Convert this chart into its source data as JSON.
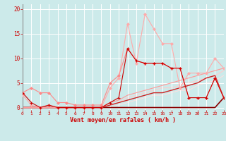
{
  "background_color": "#cceaea",
  "grid_color": "#ffffff",
  "xlabel": "Vent moyen/en rafales ( km/h )",
  "xlim": [
    0,
    23
  ],
  "ylim": [
    -0.5,
    21
  ],
  "yticks": [
    0,
    5,
    10,
    15,
    20
  ],
  "xticks": [
    0,
    1,
    2,
    3,
    4,
    5,
    6,
    7,
    8,
    9,
    10,
    11,
    12,
    13,
    14,
    15,
    16,
    17,
    18,
    19,
    20,
    21,
    22,
    23
  ],
  "lines": [
    {
      "x": [
        0,
        1,
        2,
        3,
        4,
        5,
        6,
        7,
        8,
        9,
        10,
        11,
        12,
        13,
        14,
        15,
        16,
        17,
        18,
        19,
        20,
        21,
        22,
        23
      ],
      "y": [
        3,
        1,
        0,
        0.5,
        0,
        0,
        0,
        0,
        0,
        0,
        1,
        2,
        12,
        9.5,
        9,
        9,
        9,
        8,
        8,
        2,
        2,
        2,
        6,
        2
      ],
      "color": "#cc0000",
      "lw": 0.8,
      "marker": "+",
      "ms": 3,
      "mew": 0.8,
      "zorder": 5
    },
    {
      "x": [
        0,
        1,
        2,
        3,
        4,
        5,
        6,
        7,
        8,
        9,
        10,
        11,
        12,
        13,
        14,
        15,
        16,
        17,
        18,
        19,
        20,
        21,
        22,
        23
      ],
      "y": [
        3,
        4,
        3,
        3,
        1,
        1,
        0.5,
        0.5,
        0.5,
        0.5,
        5,
        6.5,
        12,
        9.5,
        9,
        9,
        9,
        8,
        8,
        2,
        2,
        2,
        6,
        2
      ],
      "color": "#ff8888",
      "lw": 0.8,
      "marker": "D",
      "ms": 2,
      "mew": 0.5,
      "zorder": 4
    },
    {
      "x": [
        0,
        1,
        2,
        3,
        4,
        5,
        6,
        7,
        8,
        9,
        10,
        11,
        12,
        13,
        14,
        15,
        16,
        17,
        18,
        19,
        20,
        21,
        22,
        23
      ],
      "y": [
        2.5,
        0.5,
        0,
        0.5,
        0,
        0,
        0,
        0,
        0,
        0,
        4,
        6,
        17,
        9,
        19,
        16,
        13,
        13,
        4,
        7,
        7,
        7,
        10,
        8
      ],
      "color": "#ffaaaa",
      "lw": 0.8,
      "marker": "D",
      "ms": 2,
      "mew": 0.5,
      "zorder": 3
    },
    {
      "x": [
        0,
        1,
        2,
        3,
        4,
        5,
        6,
        7,
        8,
        9,
        10,
        11,
        12,
        13,
        14,
        15,
        16,
        17,
        18,
        19,
        20,
        21,
        22,
        23
      ],
      "y": [
        0,
        0,
        0,
        0,
        0,
        0,
        0,
        0,
        0,
        0,
        0,
        0,
        0,
        0,
        0,
        0,
        0,
        0,
        0,
        0,
        0,
        0,
        0,
        2
      ],
      "color": "#880000",
      "lw": 1.2,
      "marker": null,
      "ms": 0,
      "mew": 0,
      "zorder": 2
    },
    {
      "x": [
        0,
        1,
        2,
        3,
        4,
        5,
        6,
        7,
        8,
        9,
        10,
        11,
        12,
        13,
        14,
        15,
        16,
        17,
        18,
        19,
        20,
        21,
        22,
        23
      ],
      "y": [
        0,
        0,
        0,
        0,
        0,
        0,
        0,
        0,
        0,
        0,
        0.5,
        1,
        1.5,
        2,
        2.5,
        3,
        3,
        3.5,
        4,
        4.5,
        5,
        6,
        6.5,
        2
      ],
      "color": "#cc2222",
      "lw": 1.0,
      "marker": null,
      "ms": 0,
      "mew": 0,
      "zorder": 2
    },
    {
      "x": [
        0,
        1,
        2,
        3,
        4,
        5,
        6,
        7,
        8,
        9,
        10,
        11,
        12,
        13,
        14,
        15,
        16,
        17,
        18,
        19,
        20,
        21,
        22,
        23
      ],
      "y": [
        0,
        0,
        0,
        0,
        0,
        0,
        0,
        0,
        0,
        0,
        1,
        1.5,
        2.5,
        3,
        3.5,
        4,
        4.5,
        5,
        5.5,
        6,
        6.5,
        7,
        7.5,
        8
      ],
      "color": "#ff9999",
      "lw": 0.8,
      "marker": null,
      "ms": 0,
      "mew": 0,
      "zorder": 2
    },
    {
      "x": [
        0,
        1,
        2,
        3,
        4,
        5,
        6,
        7,
        8,
        9,
        10,
        11,
        12,
        13,
        14,
        15,
        16,
        17,
        18,
        19,
        20,
        21,
        22,
        23
      ],
      "y": [
        0,
        0,
        0,
        0,
        0,
        0,
        0,
        0,
        0,
        0,
        0.5,
        1,
        2,
        2.5,
        3,
        3.5,
        4,
        4,
        4.5,
        5,
        5.5,
        6,
        6.5,
        7.5
      ],
      "color": "#ffcccc",
      "lw": 0.8,
      "marker": null,
      "ms": 0,
      "mew": 0,
      "zorder": 1
    },
    {
      "x": [
        0,
        1,
        2,
        3,
        4,
        5,
        6,
        7,
        8,
        9,
        10,
        11,
        12,
        13,
        14,
        15,
        16,
        17,
        18,
        19,
        20,
        21,
        22,
        23
      ],
      "y": [
        0,
        0,
        0,
        0,
        0,
        0,
        0,
        0,
        0,
        0,
        0,
        0.5,
        1,
        1.5,
        2,
        2.5,
        2.5,
        3,
        3.5,
        3.5,
        4.5,
        5,
        5.5,
        6.5
      ],
      "color": "#ffe0e0",
      "lw": 0.7,
      "marker": null,
      "ms": 0,
      "mew": 0,
      "zorder": 1
    }
  ]
}
